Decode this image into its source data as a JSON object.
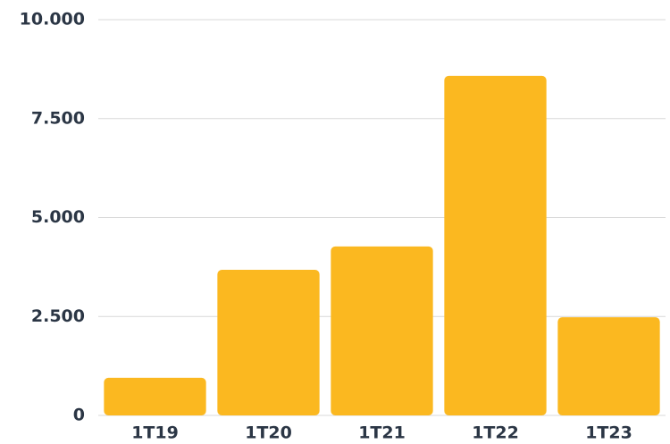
{
  "chart_data": {
    "type": "bar",
    "categories": [
      "1T19",
      "1T20",
      "1T21",
      "1T22",
      "1T23"
    ],
    "values": [
      950,
      3680,
      4270,
      8580,
      2480
    ],
    "color": "#fbb820",
    "ylim": [
      0,
      10000
    ],
    "yticks": [
      0,
      {
        "value": 2500,
        "label": "2.500"
      },
      {
        "value": 5000,
        "label": "5.000"
      },
      {
        "value": 7500,
        "label": "7.500"
      },
      {
        "value": 10000,
        "label": "10.000"
      }
    ],
    "grid": true
  }
}
